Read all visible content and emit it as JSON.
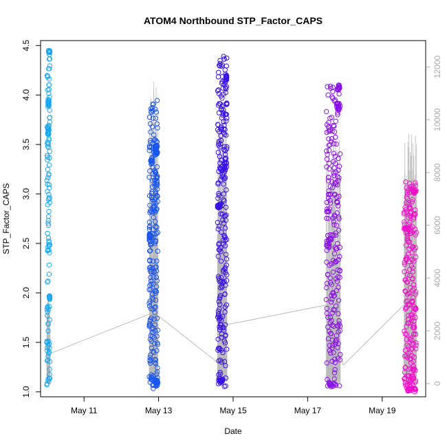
{
  "chart_data": {
    "type": "scatter",
    "title": "ATOM4 Northbound STP_Factor_CAPS",
    "xlabel": "Date",
    "ylabel": "STP_Factor_CAPS",
    "xlim": [
      "2024-05-09T20:00",
      "2024-05-20T04:00"
    ],
    "ylim": [
      0.95,
      4.55
    ],
    "y2lim": [
      -500,
      13000
    ],
    "x_ticks": [
      {
        "date": "2024-05-11",
        "label": "May 11"
      },
      {
        "date": "2024-05-13",
        "label": "May 13"
      },
      {
        "date": "2024-05-15",
        "label": "May 15"
      },
      {
        "date": "2024-05-17",
        "label": "May 17"
      },
      {
        "date": "2024-05-19",
        "label": "May 19"
      }
    ],
    "y_ticks": [
      "1.0",
      "1.5",
      "2.0",
      "2.5",
      "3.0",
      "3.5",
      "4.0",
      "4.5"
    ],
    "y2_ticks": [
      "0",
      "2000",
      "4000",
      "6000",
      "8000",
      "10000",
      "12000"
    ],
    "grid": false,
    "legend": "none",
    "colors": {
      "series_1": "#1aa8f0",
      "series_2": "#1a55ee",
      "series_3": "#3a10e8",
      "series_4": "#8a10e8",
      "series_5": "#ee10c8",
      "line": "#bbbbbb",
      "frame": "#000000",
      "right_axis": "#aaaaaa"
    },
    "series": [
      {
        "color": "#1aa8f0",
        "x_start": "2024-05-10T00:00",
        "x_end": "2024-05-10T02:00",
        "dense": [
          [
            4.43,
            4.45,
            0.5,
            1.0
          ],
          [
            3.88,
            3.95,
            0.35,
            0.8
          ],
          [
            3.6,
            3.68,
            0.3,
            0.6
          ],
          [
            1.93,
            1.97,
            0.7,
            1.0
          ]
        ],
        "y_min": 1.05,
        "y_max": 4.45,
        "count": 110,
        "lines_top": 3000
      },
      {
        "color": "#1a55ee",
        "x_start": "2024-05-12T18:00",
        "x_end": "2024-05-12T23:30",
        "dense": [
          [
            3.4,
            3.5,
            0.75,
            1.0
          ],
          [
            3.3,
            3.37,
            0.1,
            0.35
          ],
          [
            2.55,
            2.6,
            0.0,
            0.15
          ],
          [
            1.08,
            1.12,
            0.6,
            1.0
          ]
        ],
        "y_min": 1.03,
        "y_max": 3.95,
        "count": 230,
        "lines_top": 11200
      },
      {
        "color": "#3a10e8",
        "x_start": "2024-05-14T14:00",
        "x_end": "2024-05-14T20:00",
        "dense": [
          [
            2.86,
            2.9,
            0.0,
            0.35
          ],
          [
            3.23,
            3.33,
            0.65,
            1.0
          ],
          [
            1.1,
            1.13,
            0.1,
            0.55
          ],
          [
            4.15,
            4.2,
            0.9,
            1.0
          ]
        ],
        "y_min": 1.05,
        "y_max": 4.43,
        "count": 230,
        "lines_top": 10800
      },
      {
        "color": "#8a10e8",
        "x_start": "2024-05-17T12:00",
        "x_end": "2024-05-17T21:00",
        "dense": [
          [
            3.85,
            3.92,
            0.7,
            1.0
          ],
          [
            4.05,
            4.1,
            0.8,
            1.0
          ],
          [
            2.45,
            2.55,
            0.0,
            0.5
          ],
          [
            1.05,
            1.1,
            0.2,
            0.7
          ]
        ],
        "y_min": 1.05,
        "y_max": 4.1,
        "count": 210,
        "lines_top": 9200
      },
      {
        "color": "#ee10c8",
        "x_start": "2024-05-19T14:00",
        "x_end": "2024-05-19T22:00",
        "dense": [
          [
            2.6,
            2.7,
            0.0,
            0.6
          ],
          [
            1.0,
            1.05,
            0.3,
            1.0
          ],
          [
            3.0,
            3.05,
            0.6,
            1.0
          ]
        ],
        "y_min": 1.0,
        "y_max": 3.13,
        "count": 210,
        "lines_top": 9400
      }
    ],
    "connector_line": [
      {
        "x": "2024-05-10T00:30",
        "y2": 1100
      },
      {
        "x": "2024-05-12T21:00",
        "y2": 2700
      },
      {
        "x": "2024-05-14T14:00",
        "y2": 800
      },
      {
        "x": "2024-05-14T17:00",
        "y2": 2200
      },
      {
        "x": "2024-05-17T14:00",
        "y2": 3000
      },
      {
        "x": "2024-05-17T23:00",
        "y2": 700
      },
      {
        "x": "2024-05-19T16:00",
        "y2": 3100
      }
    ]
  }
}
